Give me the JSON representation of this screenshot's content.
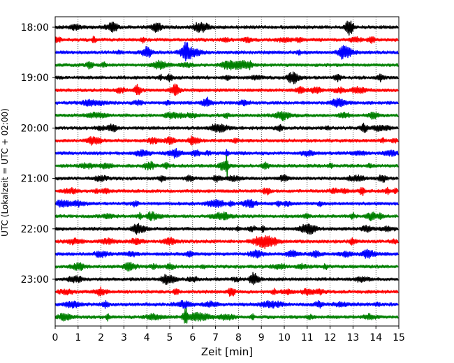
{
  "chart_data": {
    "type": "line",
    "title": "",
    "xlabel": "Zeit  [min]",
    "ylabel": "UTC (Lokalzeit = UTC + 02:00)",
    "xlim": [
      0,
      15
    ],
    "x_ticks": [
      "0",
      "1",
      "2",
      "3",
      "4",
      "5",
      "6",
      "7",
      "8",
      "9",
      "10",
      "11",
      "12",
      "13",
      "14",
      "15"
    ],
    "y_ticks": [
      "18:00",
      "19:00",
      "20:00",
      "21:00",
      "22:00",
      "23:00"
    ],
    "vertical_grid": "dotted",
    "trace_colors": [
      "#000000",
      "#ff0000",
      "#0000ff",
      "#008000"
    ],
    "traces": [
      {
        "time": "18:00",
        "color": "#000000"
      },
      {
        "time": "18:15",
        "color": "#ff0000"
      },
      {
        "time": "18:30",
        "color": "#0000ff"
      },
      {
        "time": "18:45",
        "color": "#008000"
      },
      {
        "time": "19:00",
        "color": "#000000"
      },
      {
        "time": "19:15",
        "color": "#ff0000"
      },
      {
        "time": "19:30",
        "color": "#0000ff"
      },
      {
        "time": "19:45",
        "color": "#008000"
      },
      {
        "time": "20:00",
        "color": "#000000"
      },
      {
        "time": "20:15",
        "color": "#ff0000"
      },
      {
        "time": "20:30",
        "color": "#0000ff"
      },
      {
        "time": "20:45",
        "color": "#008000"
      },
      {
        "time": "21:00",
        "color": "#000000"
      },
      {
        "time": "21:15",
        "color": "#ff0000"
      },
      {
        "time": "21:30",
        "color": "#0000ff"
      },
      {
        "time": "21:45",
        "color": "#008000"
      },
      {
        "time": "22:00",
        "color": "#000000"
      },
      {
        "time": "22:15",
        "color": "#ff0000"
      },
      {
        "time": "22:30",
        "color": "#0000ff"
      },
      {
        "time": "22:45",
        "color": "#008000"
      },
      {
        "time": "23:00",
        "color": "#000000"
      },
      {
        "time": "23:15",
        "color": "#ff0000"
      },
      {
        "time": "23:30",
        "color": "#0000ff"
      },
      {
        "time": "23:45",
        "color": "#008000"
      }
    ]
  }
}
